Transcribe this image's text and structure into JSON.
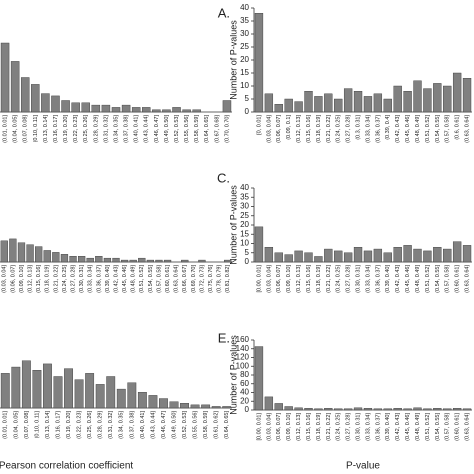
{
  "chart_data": [
    {
      "type": "bar",
      "panel_label": "A.",
      "color": "#808080",
      "ylim": [
        0,
        40
      ],
      "categories": [
        "(0.01, 0.01]",
        "(0.04, 0.05]",
        "(0.07, 0.08]",
        "(0.10, 0.11]",
        "(0.13, 0.14]",
        "(0.16, 0.17]",
        "(0.19, 0.20]",
        "(0.22, 0.23]",
        "(0.25, 0.26]",
        "(0.28, 0.29]",
        "(0.31, 0.32]",
        "(0.34, 0.35]",
        "(0.37, 0.38]",
        "(0.40, 0.41]",
        "(0.43, 0.44]",
        "(0.46, 0.47]",
        "(0.49, 0.50]",
        "(0.52, 0.53]",
        "(0.55, 0.56]",
        "(0.58, 0.59]",
        "(0.64, 0.65]",
        "(0.67, 0.68]",
        "(0.70, 0.70]"
      ],
      "values": [
        30,
        22,
        15,
        12,
        8,
        7,
        5,
        4,
        4,
        3,
        3,
        2,
        3,
        2,
        2,
        1,
        1,
        2,
        1,
        1,
        0,
        0,
        5
      ]
    },
    {
      "type": "bar",
      "ylabel": "Number of P-values",
      "color": "#808080",
      "ylim": [
        0,
        40
      ],
      "yticks": [
        0,
        5,
        10,
        15,
        20,
        25,
        30,
        35,
        40
      ],
      "categories": [
        "[0, 0.01]",
        "(0.03, 0.04]",
        "(0.06, 0.07]",
        "(0.09, 0.1]",
        "(0.12, 0.13]",
        "(0.15, 0.16]",
        "(0.18, 0.19]",
        "(0.21, 0.22]",
        "(0.24, 0.25]",
        "(0.27, 0.28]",
        "(0.3, 0.31]",
        "(0.33, 0.34]",
        "(0.36, 0.37]",
        "(0.39, 0.4]",
        "(0.42, 0.43]",
        "(0.45, 0.46]",
        "(0.48, 0.49]",
        "(0.51, 0.52]",
        "(0.54, 0.55]",
        "(0.57, 0.58]",
        "(0.6, 0.61]",
        "(0.63, 0.64]"
      ],
      "values": [
        38,
        7,
        3,
        5,
        4,
        8,
        6,
        7,
        5,
        9,
        8,
        6,
        7,
        5,
        10,
        8,
        12,
        9,
        11,
        10,
        15,
        13
      ]
    },
    {
      "type": "bar",
      "panel_label": "C.",
      "color": "#808080",
      "ylim": [
        0,
        40
      ],
      "categories": [
        "(0.03, 0.04]",
        "(0.06, 0.07]",
        "(0.09, 0.10]",
        "(0.12, 0.13]",
        "(0.15, 0.16]",
        "(0.18, 0.19]",
        "(0.21, 0.22]",
        "(0.24, 0.25]",
        "(0.27, 0.28]",
        "(0.30, 0.31]",
        "(0.33, 0.34]",
        "(0.36, 0.37]",
        "(0.39, 0.40]",
        "(0.42, 0.43]",
        "(0.45, 0.46]",
        "(0.48, 0.49]",
        "(0.51, 0.52]",
        "(0.54, 0.55]",
        "(0.57, 0.58]",
        "(0.60, 0.61]",
        "(0.63, 0.64]",
        "(0.66, 0.67]",
        "(0.69, 0.70]",
        "(0.72, 0.73]",
        "(0.75, 0.76]",
        "(0.78, 0.79]",
        "(0.81, 0.82]"
      ],
      "values": [
        11,
        12,
        10,
        9,
        8,
        6,
        5,
        4,
        3,
        3,
        2,
        3,
        2,
        2,
        1,
        1,
        2,
        1,
        1,
        1,
        0,
        1,
        0,
        1,
        0,
        0,
        1
      ]
    },
    {
      "type": "bar",
      "ylabel": "Number of P-values",
      "color": "#808080",
      "ylim": [
        0,
        40
      ],
      "yticks": [
        0,
        5,
        10,
        15,
        20,
        25,
        30,
        35,
        40
      ],
      "categories": [
        "[0.00, 0.01]",
        "(0.03, 0.04]",
        "(0.06, 0.07]",
        "(0.09, 0.10]",
        "(0.12, 0.13]",
        "(0.15, 0.16]",
        "(0.18, 0.19]",
        "(0.21, 0.22]",
        "(0.24, 0.25]",
        "(0.27, 0.28]",
        "(0.30, 0.31]",
        "(0.33, 0.34]",
        "(0.36, 0.37]",
        "(0.39, 0.40]",
        "(0.42, 0.43]",
        "(0.45, 0.46]",
        "(0.48, 0.49]",
        "(0.51, 0.52]",
        "(0.54, 0.55]",
        "(0.57, 0.58]",
        "(0.60, 0.61]",
        "(0.63, 0.64]"
      ],
      "values": [
        19,
        8,
        5,
        4,
        6,
        5,
        3,
        7,
        6,
        5,
        8,
        6,
        7,
        5,
        8,
        9,
        7,
        6,
        8,
        7,
        11,
        9
      ]
    },
    {
      "type": "bar",
      "panel_label": "E.",
      "xlabel": "Pearson correlation coefficient",
      "color": "#808080",
      "ylim": [
        0,
        40
      ],
      "categories": [
        "(0.01, 0.01]",
        "(0.04, 0.05]",
        "(0.07, 0.08]",
        "(0.10, 0.11]",
        "(0.13, 0.14]",
        "(0.16, 0.17]",
        "(0.19, 0.20]",
        "(0.22, 0.23]",
        "(0.25, 0.26]",
        "(0.28, 0.29]",
        "(0.31, 0.32]",
        "(0.34, 0.35]",
        "(0.37, 0.38]",
        "(0.40, 0.41]",
        "(0.43, 0.44]",
        "(0.46, 0.47]",
        "(0.49, 0.50]",
        "(0.52, 0.53]",
        "(0.55, 0.56]",
        "(0.58, 0.59]",
        "(0.61, 0.62]",
        "(0.64, 0.65]"
      ],
      "values": [
        22,
        26,
        30,
        24,
        28,
        20,
        25,
        18,
        22,
        15,
        20,
        12,
        16,
        10,
        8,
        6,
        4,
        3,
        2,
        2,
        1,
        1
      ]
    },
    {
      "type": "bar",
      "ylabel": "Number of P-values",
      "xlabel": "P-value",
      "color": "#808080",
      "ylim": [
        0,
        160
      ],
      "yticks": [
        0,
        20,
        40,
        60,
        80,
        100,
        120,
        140,
        160
      ],
      "categories": [
        "[0.00, 0.01]",
        "(0.03, 0.04]",
        "(0.06, 0.07]",
        "(0.09, 0.10]",
        "(0.12, 0.13]",
        "(0.15, 0.16]",
        "(0.18, 0.19]",
        "(0.21, 0.22]",
        "(0.24, 0.25]",
        "(0.27, 0.28]",
        "(0.30, 0.31]",
        "(0.33, 0.34]",
        "(0.36, 0.37]",
        "(0.39, 0.40]",
        "(0.42, 0.43]",
        "(0.45, 0.46]",
        "(0.48, 0.49]",
        "(0.51, 0.52]",
        "(0.54, 0.55]",
        "(0.57, 0.58]",
        "(0.60, 0.61]",
        "(0.63, 0.64]"
      ],
      "values": [
        145,
        30,
        15,
        8,
        5,
        4,
        3,
        4,
        3,
        3,
        5,
        4,
        3,
        3,
        4,
        3,
        5,
        3,
        4,
        3,
        4,
        3
      ]
    }
  ]
}
